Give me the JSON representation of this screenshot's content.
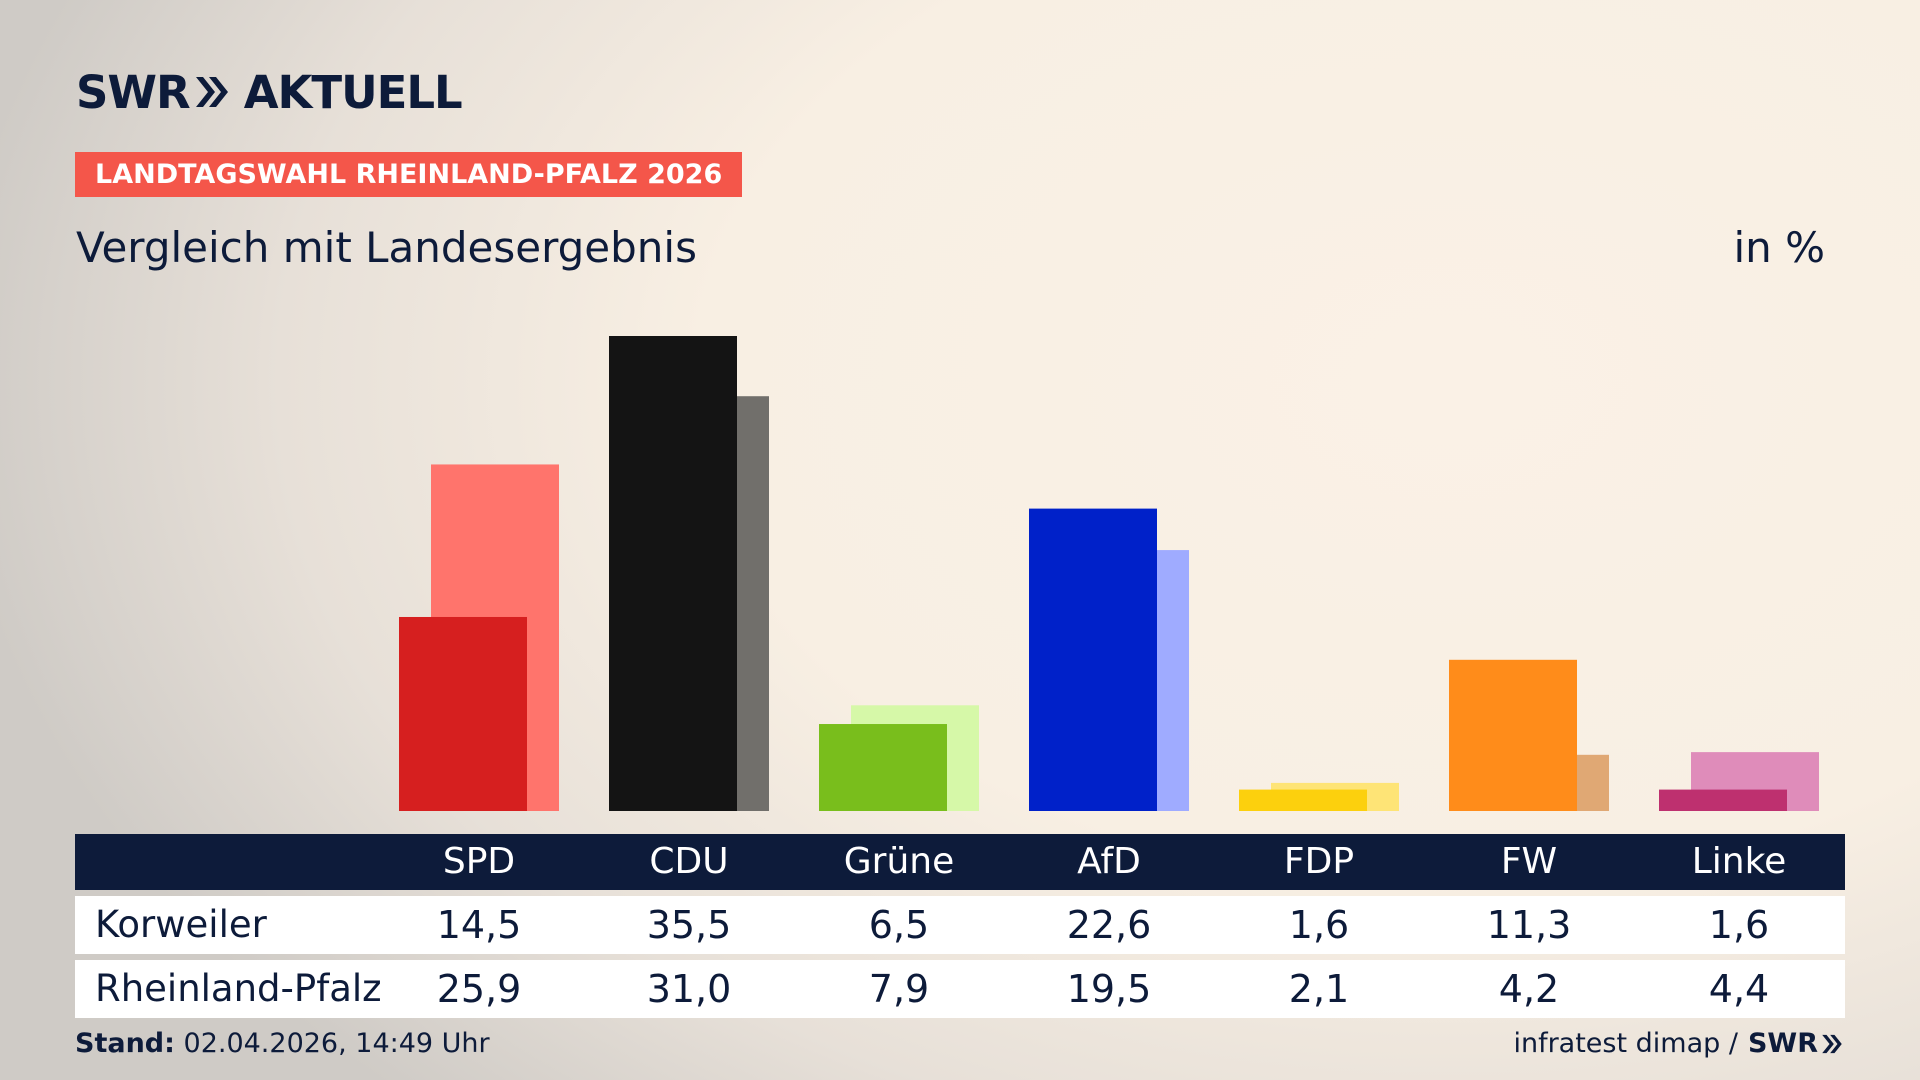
{
  "logo": {
    "brand": "SWR",
    "product": "AKTUELL"
  },
  "tag": "LANDTAGSWAHL RHEINLAND-PFALZ 2026",
  "subtitle": "Vergleich mit Landesergebnis",
  "unit": "in %",
  "footer": {
    "stand_label": "Stand:",
    "stand_value": "02.04.2026, 14:49 Uhr",
    "source": "infratest dimap /",
    "source_brand": "SWR"
  },
  "colors": {
    "navy": "#0d1b3a",
    "tag_bg": "#f4564a"
  },
  "chart_data": {
    "type": "bar",
    "categories": [
      "SPD",
      "CDU",
      "Grüne",
      "AfD",
      "FDP",
      "FW",
      "Linke"
    ],
    "series": [
      {
        "name": "Korweiler",
        "values": [
          14.5,
          35.5,
          6.5,
          22.6,
          1.6,
          11.3,
          1.6
        ],
        "colors": [
          "#d61f1f",
          "#141414",
          "#79be1c",
          "#0021c9",
          "#fcd00d",
          "#ff8c1a",
          "#be306f"
        ]
      },
      {
        "name": "Rheinland-Pfalz",
        "values": [
          25.9,
          31.0,
          7.9,
          19.5,
          2.1,
          4.2,
          4.4
        ],
        "colors": [
          "#ff746c",
          "#716f6b",
          "#d6f8a8",
          "#9fabff",
          "#fee476",
          "#e0a874",
          "#df8cba"
        ]
      }
    ],
    "value_labels": {
      "Korweiler": [
        "14,5",
        "35,5",
        "6,5",
        "22,6",
        "1,6",
        "11,3",
        "1,6"
      ],
      "Rheinland-Pfalz": [
        "25,9",
        "31,0",
        "7,9",
        "19,5",
        "2,1",
        "4,2",
        "4,4"
      ]
    },
    "ylim": [
      0,
      35.5
    ],
    "grid": false,
    "legend": "table-below"
  }
}
